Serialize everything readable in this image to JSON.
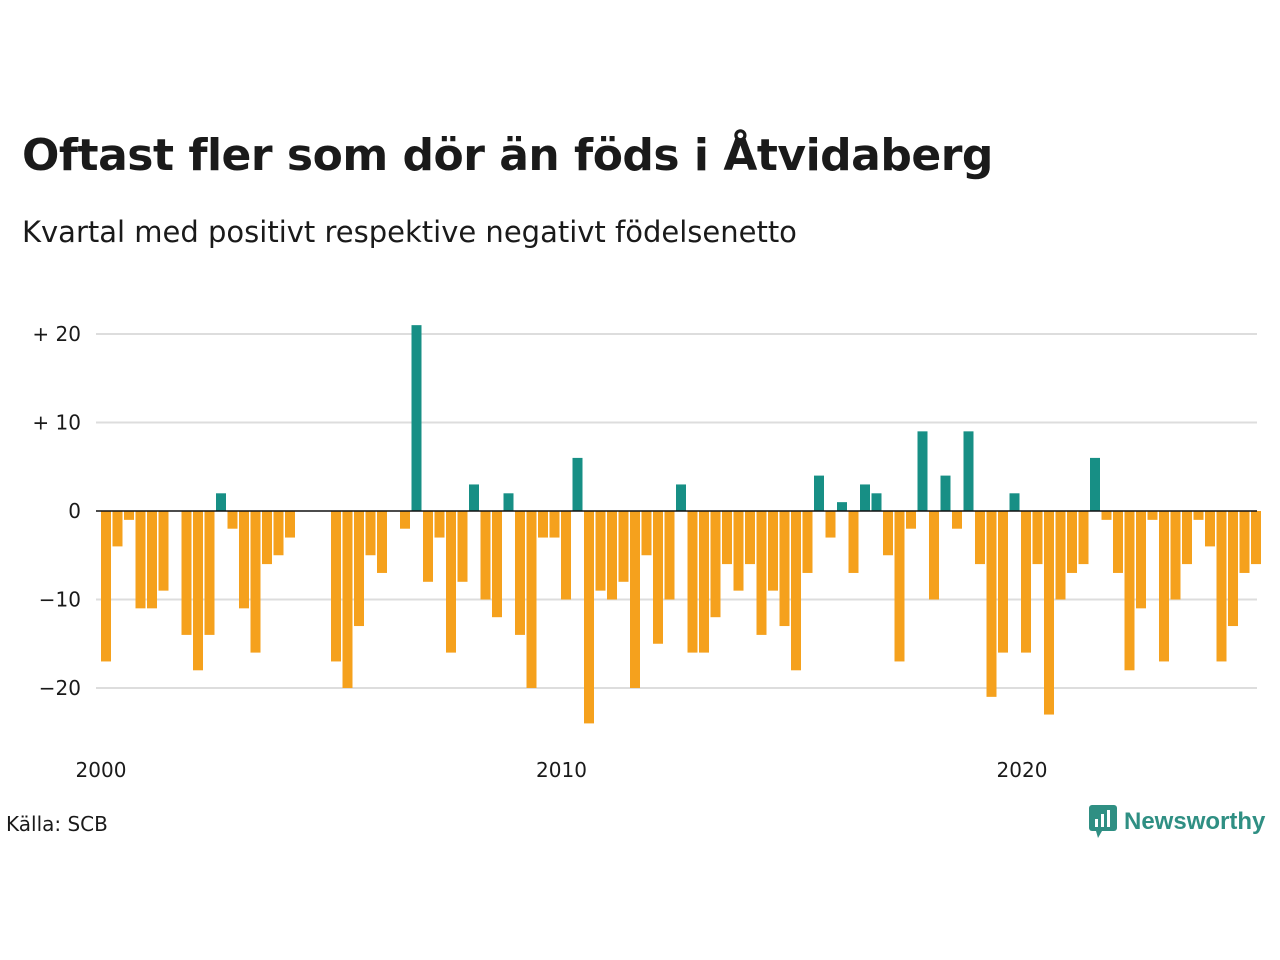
{
  "title": "Oftast fler som dör än föds i Åtvidaberg",
  "subtitle": "Kvartal med positivt respektive negativt födelsenetto",
  "source": "Källa: SCB",
  "brand": {
    "name": "Newsworthy",
    "icon": "newsworthy-logo-icon"
  },
  "colors": {
    "positive": "#178f85",
    "negative": "#f5a11d",
    "grid": "#dddddd",
    "zero": "#111111"
  },
  "chart_data": {
    "type": "bar",
    "title": "Oftast fler som dör än föds i Åtvidaberg",
    "subtitle": "Kvartal med positivt respektive negativt födelsenetto",
    "x_start": "2000-Q1",
    "x_ticks": [
      {
        "label": "2000",
        "year": 2000
      },
      {
        "label": "2010",
        "year": 2010
      },
      {
        "label": "2020",
        "year": 2020
      }
    ],
    "y_ticks": [
      {
        "label": "+ 20",
        "value": 20
      },
      {
        "label": "+ 10",
        "value": 10
      },
      {
        "label": "0",
        "value": 0
      },
      {
        "label": "−10",
        "value": -10
      },
      {
        "label": "−20",
        "value": -20
      }
    ],
    "ylim": [
      -25,
      22
    ],
    "grid": true,
    "values": [
      -17,
      -4,
      -1,
      -11,
      -11,
      -9,
      null,
      -14,
      -18,
      -14,
      2,
      -2,
      -11,
      -16,
      -6,
      -5,
      -3,
      null,
      null,
      null,
      -17,
      -20,
      -13,
      -5,
      -7,
      null,
      -2,
      21,
      -8,
      -3,
      -16,
      -8,
      3,
      -10,
      -12,
      2,
      -14,
      -20,
      -3,
      -3,
      -10,
      6,
      -24,
      -9,
      -10,
      -8,
      -20,
      -5,
      -15,
      -10,
      3,
      -16,
      -16,
      -12,
      -6,
      -9,
      -6,
      -14,
      -9,
      -13,
      -18,
      -7,
      4,
      -3,
      1,
      -7,
      3,
      2,
      -5,
      -17,
      -2,
      9,
      -10,
      4,
      -2,
      9,
      -6,
      -21,
      -16,
      2,
      -16,
      -6,
      -23,
      -10,
      -7,
      -6,
      6,
      -1,
      -7,
      -18,
      -11,
      -1,
      -17,
      -10,
      -6,
      -1,
      -4,
      -17,
      -13,
      -7,
      -6
    ]
  }
}
